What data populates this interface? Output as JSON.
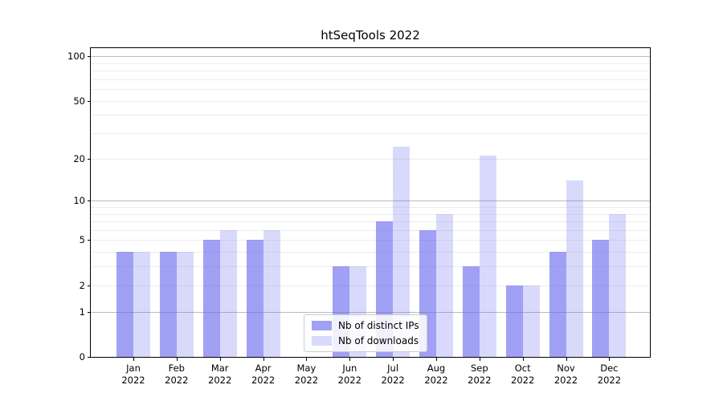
{
  "chart_data": {
    "type": "bar",
    "title": "htSeqTools 2022",
    "categories": [
      "Jan",
      "Feb",
      "Mar",
      "Apr",
      "May",
      "Jun",
      "Jul",
      "Aug",
      "Sep",
      "Oct",
      "Nov",
      "Dec"
    ],
    "year_label": "2022",
    "series": [
      {
        "name": "Nb of distinct IPs",
        "values": [
          4,
          4,
          5,
          5,
          0,
          3,
          7,
          6,
          3,
          2,
          4,
          5
        ]
      },
      {
        "name": "Nb of downloads",
        "values": [
          4,
          4,
          6,
          6,
          0,
          3,
          24,
          8,
          21,
          2,
          14,
          8
        ]
      }
    ],
    "yscale": "log1p",
    "ylim": [
      0,
      115
    ],
    "yticks": [
      0,
      1,
      2,
      5,
      10,
      20,
      50,
      100
    ],
    "ytick_major_gridlines": [
      1,
      10,
      100
    ],
    "ytick_minor_gridlines": [
      2,
      3,
      4,
      5,
      6,
      7,
      8,
      9,
      20,
      30,
      40,
      50,
      60,
      70,
      80,
      90
    ],
    "grid": "horizontal",
    "legend_position": "lower center inside",
    "colors": {
      "bar_fill_base": "#6666ee",
      "bar_series0_rgba": "rgba(102,102,238,0.62)",
      "bar_series1_rgba": "rgba(102,102,238,0.25)",
      "grid_major": "#bbbbbb",
      "grid_minor": "#ececec",
      "axis": "#000000",
      "background": "#ffffff"
    }
  }
}
